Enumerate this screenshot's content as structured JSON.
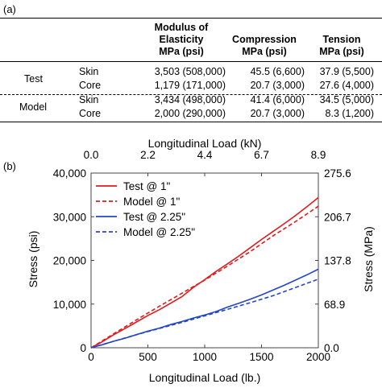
{
  "panel_a_label": "(a)",
  "panel_b_label": "(b)",
  "table": {
    "headers": [
      [
        "Modulus of",
        "Elasticity",
        "MPa (psi)"
      ],
      [
        "Compression",
        "MPa (psi)"
      ],
      [
        "Tension",
        "MPa (psi)"
      ]
    ],
    "groups": [
      {
        "name": "Test",
        "rows": [
          {
            "layer": "Skin",
            "modulus": "3,503 (508,000)",
            "compression": "45.5 (6,600)",
            "tension": "37.9 (5,500)"
          },
          {
            "layer": "Core",
            "modulus": "1,179 (171,000)",
            "compression": "20.7 (3,000)",
            "tension": "27.6 (4,000)"
          }
        ]
      },
      {
        "name": "Model",
        "rows": [
          {
            "layer": "Skin",
            "modulus": "3,434 (498,000)",
            "compression": "41.4 (6,000)",
            "tension": "34.5 (5,000)"
          },
          {
            "layer": "Core",
            "modulus": "2,000 (290,000)",
            "compression": "20.7 (3,000)",
            "tension": "8.3 (1,200)"
          }
        ]
      }
    ]
  },
  "chart_data": {
    "type": "line",
    "xlabel": "Longitudinal Load (lb.)",
    "x2label": "Longitudinal Load (kN)",
    "ylabel": "Stress (psi)",
    "y2label": "Stress (MPa)",
    "xlim": [
      0,
      2000
    ],
    "ylim": [
      0,
      40000
    ],
    "x_ticks": [
      "0",
      "500",
      "1000",
      "1500",
      "2000"
    ],
    "x2_ticks": [
      "0.0",
      "2.2",
      "4.4",
      "6.7",
      "8.9"
    ],
    "y_ticks": [
      "0",
      "10,000",
      "20,000",
      "30,000",
      "40,000"
    ],
    "y2_ticks": [
      "0.0",
      "68.9",
      "137.8",
      "206.7",
      "275.6"
    ],
    "legend_position": "top-left",
    "series": [
      {
        "name": "Test @ 1\"",
        "color": "#e31a1c",
        "dash": false,
        "x": [
          0,
          100,
          200,
          300,
          400,
          500,
          600,
          700,
          800,
          900,
          1000,
          1100,
          1200,
          1300,
          1400,
          1500,
          1600,
          1700,
          1800,
          1900,
          2000
        ],
        "y": [
          0,
          1400,
          3000,
          4400,
          5900,
          7400,
          8700,
          10200,
          11700,
          13800,
          15600,
          17500,
          19200,
          21000,
          22900,
          24800,
          26600,
          28400,
          30300,
          32300,
          34400
        ]
      },
      {
        "name": "Model @ 1\"",
        "color": "#e31a1c",
        "dash": true,
        "x": [
          0,
          200,
          400,
          600,
          800,
          1000,
          1200,
          1400,
          1600,
          1800,
          2000
        ],
        "y": [
          0,
          3200,
          6400,
          9500,
          12500,
          15500,
          18700,
          22000,
          25600,
          28900,
          32400
        ]
      },
      {
        "name": "Test @ 2.25\"",
        "color": "#2346c8",
        "dash": false,
        "x": [
          0,
          100,
          200,
          300,
          400,
          500,
          600,
          700,
          800,
          900,
          1000,
          1100,
          1200,
          1300,
          1400,
          1500,
          1600,
          1700,
          1800,
          1900,
          2000
        ],
        "y": [
          0,
          700,
          1500,
          2200,
          3000,
          3800,
          4500,
          5300,
          6000,
          6800,
          7500,
          8300,
          9300,
          10200,
          11100,
          12100,
          13200,
          14300,
          15500,
          16700,
          18000
        ]
      },
      {
        "name": "Model @ 2.25\"",
        "color": "#2346c8",
        "dash": true,
        "x": [
          0,
          200,
          400,
          600,
          800,
          1000,
          1200,
          1400,
          1600,
          1800,
          2000
        ],
        "y": [
          0,
          1500,
          3000,
          4400,
          5800,
          7300,
          8800,
          10300,
          11900,
          13800,
          15700
        ]
      }
    ]
  }
}
